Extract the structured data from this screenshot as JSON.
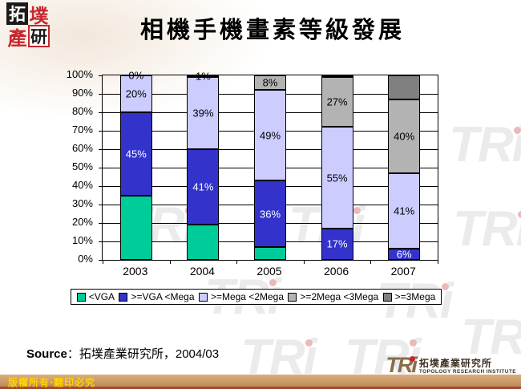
{
  "logo": {
    "chars": [
      "拓",
      "墣",
      "產",
      "研"
    ]
  },
  "title": "相機手機畫素等級發展",
  "chart_data": {
    "type": "bar",
    "subtype": "stacked-100-percent",
    "title": "相機手機畫素等級發展",
    "categories": [
      "2003",
      "2004",
      "2005",
      "2006",
      "2007"
    ],
    "series": [
      {
        "name": "<VGA",
        "color": "#00CC99",
        "label_color": "#000000",
        "values": [
          35,
          19,
          7,
          0,
          0
        ],
        "labels": [
          "",
          "",
          "",
          "",
          ""
        ]
      },
      {
        "name": ">=VGA <Mega",
        "color": "#3333CC",
        "label_color": "#FFFFFF",
        "values": [
          45,
          41,
          36,
          17,
          6
        ],
        "labels": [
          "45%",
          "41%",
          "36%",
          "17%",
          "6%"
        ]
      },
      {
        "name": ">=Mega <2Mega",
        "color": "#CCCCFF",
        "label_color": "#000000",
        "values": [
          20,
          39,
          49,
          55,
          41
        ],
        "labels": [
          "20%",
          "39%",
          "49%",
          "55%",
          "41%"
        ]
      },
      {
        "name": ">=2Mega <3Mega",
        "color": "#B3B3B3",
        "label_color": "#000000",
        "values": [
          0,
          1,
          8,
          27,
          40
        ],
        "labels": [
          "0%",
          "1%",
          "8%",
          "27%",
          "40%"
        ]
      },
      {
        "name": ">=3Mega",
        "color": "#808080",
        "label_color": "#000000",
        "values": [
          0,
          0,
          0,
          1,
          13
        ],
        "labels": [
          "",
          "",
          "",
          "",
          ""
        ]
      }
    ],
    "y_ticks": [
      "100%",
      "90%",
      "80%",
      "70%",
      "60%",
      "50%",
      "40%",
      "30%",
      "20%",
      "10%",
      "0%"
    ],
    "ylim": [
      0,
      100
    ],
    "grid": true,
    "legend_position": "bottom"
  },
  "source": {
    "label": "Source",
    "text": "：拓墣產業研究所，2004/03"
  },
  "footer": {
    "copyright": "版權所有‧翻印必究"
  },
  "brand": {
    "name": "TRi",
    "cn": "拓墣產業研究所",
    "en": "TOPOLOGY RESEARCH INSTITUTE",
    "watermark": "TRi"
  }
}
